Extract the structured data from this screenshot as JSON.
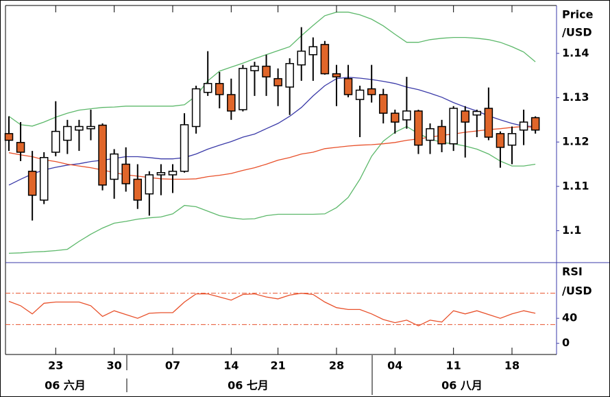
{
  "chart_data": [
    {
      "type": "candlestick",
      "y_label": [
        "Price",
        "/USD"
      ],
      "categories": [
        null,
        null,
        null,
        null,
        "23",
        null,
        null,
        null,
        null,
        "30",
        null,
        null,
        null,
        null,
        "07",
        null,
        null,
        null,
        null,
        "14",
        null,
        null,
        null,
        "21",
        null,
        null,
        null,
        null,
        "28",
        null,
        null,
        null,
        null,
        "04",
        null,
        null,
        null,
        null,
        "11",
        null,
        null,
        null,
        null,
        "18",
        null,
        null
      ],
      "open": [
        1.1219,
        1.1199,
        1.1134,
        1.1069,
        1.1177,
        1.1204,
        1.1227,
        1.123,
        1.1238,
        1.1116,
        1.115,
        1.1116,
        1.1083,
        1.1126,
        1.1126,
        1.1134,
        1.1235,
        1.1312,
        1.1332,
        1.1307,
        1.1273,
        1.1361,
        1.1371,
        1.1343,
        1.1324,
        1.1374,
        1.1397,
        1.142,
        1.1354,
        1.1343,
        1.1296,
        1.132,
        1.1307,
        1.1265,
        1.125,
        1.127,
        1.1204,
        1.1235,
        1.1196,
        1.127,
        1.1261,
        1.1276,
        1.1219,
        1.1193,
        1.1227,
        1.1255
      ],
      "high": [
        1.1258,
        1.1245,
        1.118,
        1.1177,
        1.1292,
        1.125,
        1.125,
        1.1273,
        1.1242,
        1.1184,
        1.1188,
        1.115,
        1.1134,
        1.115,
        1.115,
        1.1265,
        1.1327,
        1.1405,
        1.1358,
        1.1343,
        1.1374,
        1.1381,
        1.1397,
        1.1366,
        1.1389,
        1.1459,
        1.1436,
        1.1428,
        1.1374,
        1.1374,
        1.1327,
        1.1374,
        1.132,
        1.1273,
        1.1347,
        1.1273,
        1.1242,
        1.125,
        1.1281,
        1.1281,
        1.1273,
        1.1323,
        1.1224,
        1.1235,
        1.1273,
        1.1258
      ],
      "low": [
        1.118,
        1.1157,
        1.1023,
        1.106,
        1.1168,
        1.1173,
        1.118,
        1.1204,
        1.1091,
        1.1072,
        1.1088,
        1.1049,
        1.1034,
        1.108,
        1.1085,
        1.1131,
        1.1219,
        1.1304,
        1.1276,
        1.125,
        1.1269,
        1.1304,
        1.1304,
        1.1281,
        1.1261,
        1.1338,
        1.1338,
        1.1352,
        1.1281,
        1.1301,
        1.1211,
        1.1289,
        1.1242,
        1.1219,
        1.123,
        1.1173,
        1.1173,
        1.1177,
        1.118,
        1.1165,
        1.1211,
        1.1204,
        1.1142,
        1.115,
        1.1193,
        1.1219
      ],
      "close": [
        1.1204,
        1.1177,
        1.108,
        1.1165,
        1.1224,
        1.1235,
        1.1235,
        1.1235,
        1.1103,
        1.1173,
        1.1106,
        1.1069,
        1.1126,
        1.1131,
        1.1134,
        1.1239,
        1.132,
        1.1332,
        1.1307,
        1.127,
        1.1366,
        1.1371,
        1.1347,
        1.1327,
        1.1377,
        1.1405,
        1.1415,
        1.1354,
        1.1347,
        1.1307,
        1.1317,
        1.1307,
        1.1265,
        1.1245,
        1.127,
        1.1193,
        1.123,
        1.1196,
        1.1276,
        1.1245,
        1.1269,
        1.1211,
        1.1188,
        1.1219,
        1.1245,
        1.1227
      ],
      "up_color": "#ffffff",
      "down_color": "#e0662a",
      "series": [
        {
          "color": "#5cb86a",
          "values": [
            1.1258,
            1.1239,
            1.1236,
            1.1245,
            1.1256,
            1.1265,
            1.1272,
            1.1275,
            1.1278,
            1.1279,
            1.1281,
            1.1281,
            1.1281,
            1.1281,
            1.1281,
            1.1284,
            1.1304,
            1.1338,
            1.136,
            1.1369,
            1.1378,
            1.1388,
            1.1397,
            1.1406,
            1.1415,
            1.144,
            1.1463,
            1.1485,
            1.1493,
            1.1493,
            1.1487,
            1.1477,
            1.1462,
            1.1443,
            1.1425,
            1.1425,
            1.1431,
            1.1434,
            1.1436,
            1.1436,
            1.1434,
            1.1431,
            1.1425,
            1.1415,
            1.1403,
            1.1381
          ]
        },
        {
          "color": "#5cb86a",
          "values": [
            1.0949,
            1.095,
            1.0952,
            1.0953,
            1.0955,
            1.0958,
            1.0976,
            1.0992,
            1.1006,
            1.1017,
            1.1021,
            1.1026,
            1.1029,
            1.1031,
            1.1038,
            1.1057,
            1.1054,
            1.1044,
            1.1034,
            1.1029,
            1.1026,
            1.1027,
            1.1034,
            1.1037,
            1.1037,
            1.1037,
            1.1037,
            1.1038,
            1.1052,
            1.1075,
            1.1116,
            1.1168,
            1.1202,
            1.1222,
            1.1235,
            1.1219,
            1.1207,
            1.1199,
            1.1196,
            1.1191,
            1.1184,
            1.1173,
            1.1157,
            1.1146,
            1.1146,
            1.115
          ]
        },
        {
          "color": "#3a3aa8",
          "values": [
            1.1103,
            1.1116,
            1.1128,
            1.1137,
            1.1143,
            1.1148,
            1.1151,
            1.1156,
            1.1159,
            1.1163,
            1.1167,
            1.1167,
            1.1165,
            1.1162,
            1.1162,
            1.1165,
            1.1173,
            1.1184,
            1.1193,
            1.1201,
            1.1211,
            1.1218,
            1.123,
            1.1242,
            1.1258,
            1.1278,
            1.1304,
            1.1327,
            1.1343,
            1.1346,
            1.1344,
            1.1341,
            1.1337,
            1.1332,
            1.1324,
            1.1318,
            1.131,
            1.1301,
            1.1289,
            1.1279,
            1.127,
            1.1259,
            1.125,
            1.1242,
            1.1236,
            1.1235
          ]
        },
        {
          "color": "#e8502a",
          "values": [
            1.1176,
            1.1171,
            1.1167,
            1.116,
            1.1156,
            1.115,
            1.1146,
            1.1142,
            1.1137,
            1.1131,
            1.1126,
            1.1123,
            1.112,
            1.1117,
            1.1116,
            1.1116,
            1.1117,
            1.1122,
            1.1125,
            1.1129,
            1.1136,
            1.1142,
            1.115,
            1.1159,
            1.1165,
            1.1173,
            1.1177,
            1.1185,
            1.1188,
            1.1191,
            1.1193,
            1.1194,
            1.1196,
            1.1199,
            1.1204,
            1.1207,
            1.1211,
            1.1215,
            1.1218,
            1.1222,
            1.1225,
            1.1228,
            1.123,
            1.1233,
            1.1235,
            1.1233
          ]
        }
      ],
      "ylim": [
        1.0928,
        1.1508
      ],
      "yticks": [
        1.1,
        1.11,
        1.12,
        1.13,
        1.14
      ]
    },
    {
      "type": "line",
      "y_label": [
        "RSI",
        "/USD"
      ],
      "values": [
        67,
        60,
        47,
        64,
        66,
        66,
        66,
        60,
        43,
        52,
        46,
        40,
        48,
        49,
        49,
        66,
        79,
        79,
        74,
        69,
        78,
        79,
        74,
        71,
        77,
        80,
        78,
        66,
        57,
        54,
        54,
        47,
        38,
        33,
        37,
        28,
        37,
        34,
        52,
        47,
        52,
        46,
        40,
        47,
        52,
        48
      ],
      "color": "#e8502a",
      "levels": [
        80,
        30
      ],
      "ylim": [
        -17.8,
        128.9
      ],
      "yticks": [
        0,
        40
      ]
    }
  ],
  "months": [
    "06 六月",
    "06 七月",
    "06 八月"
  ]
}
